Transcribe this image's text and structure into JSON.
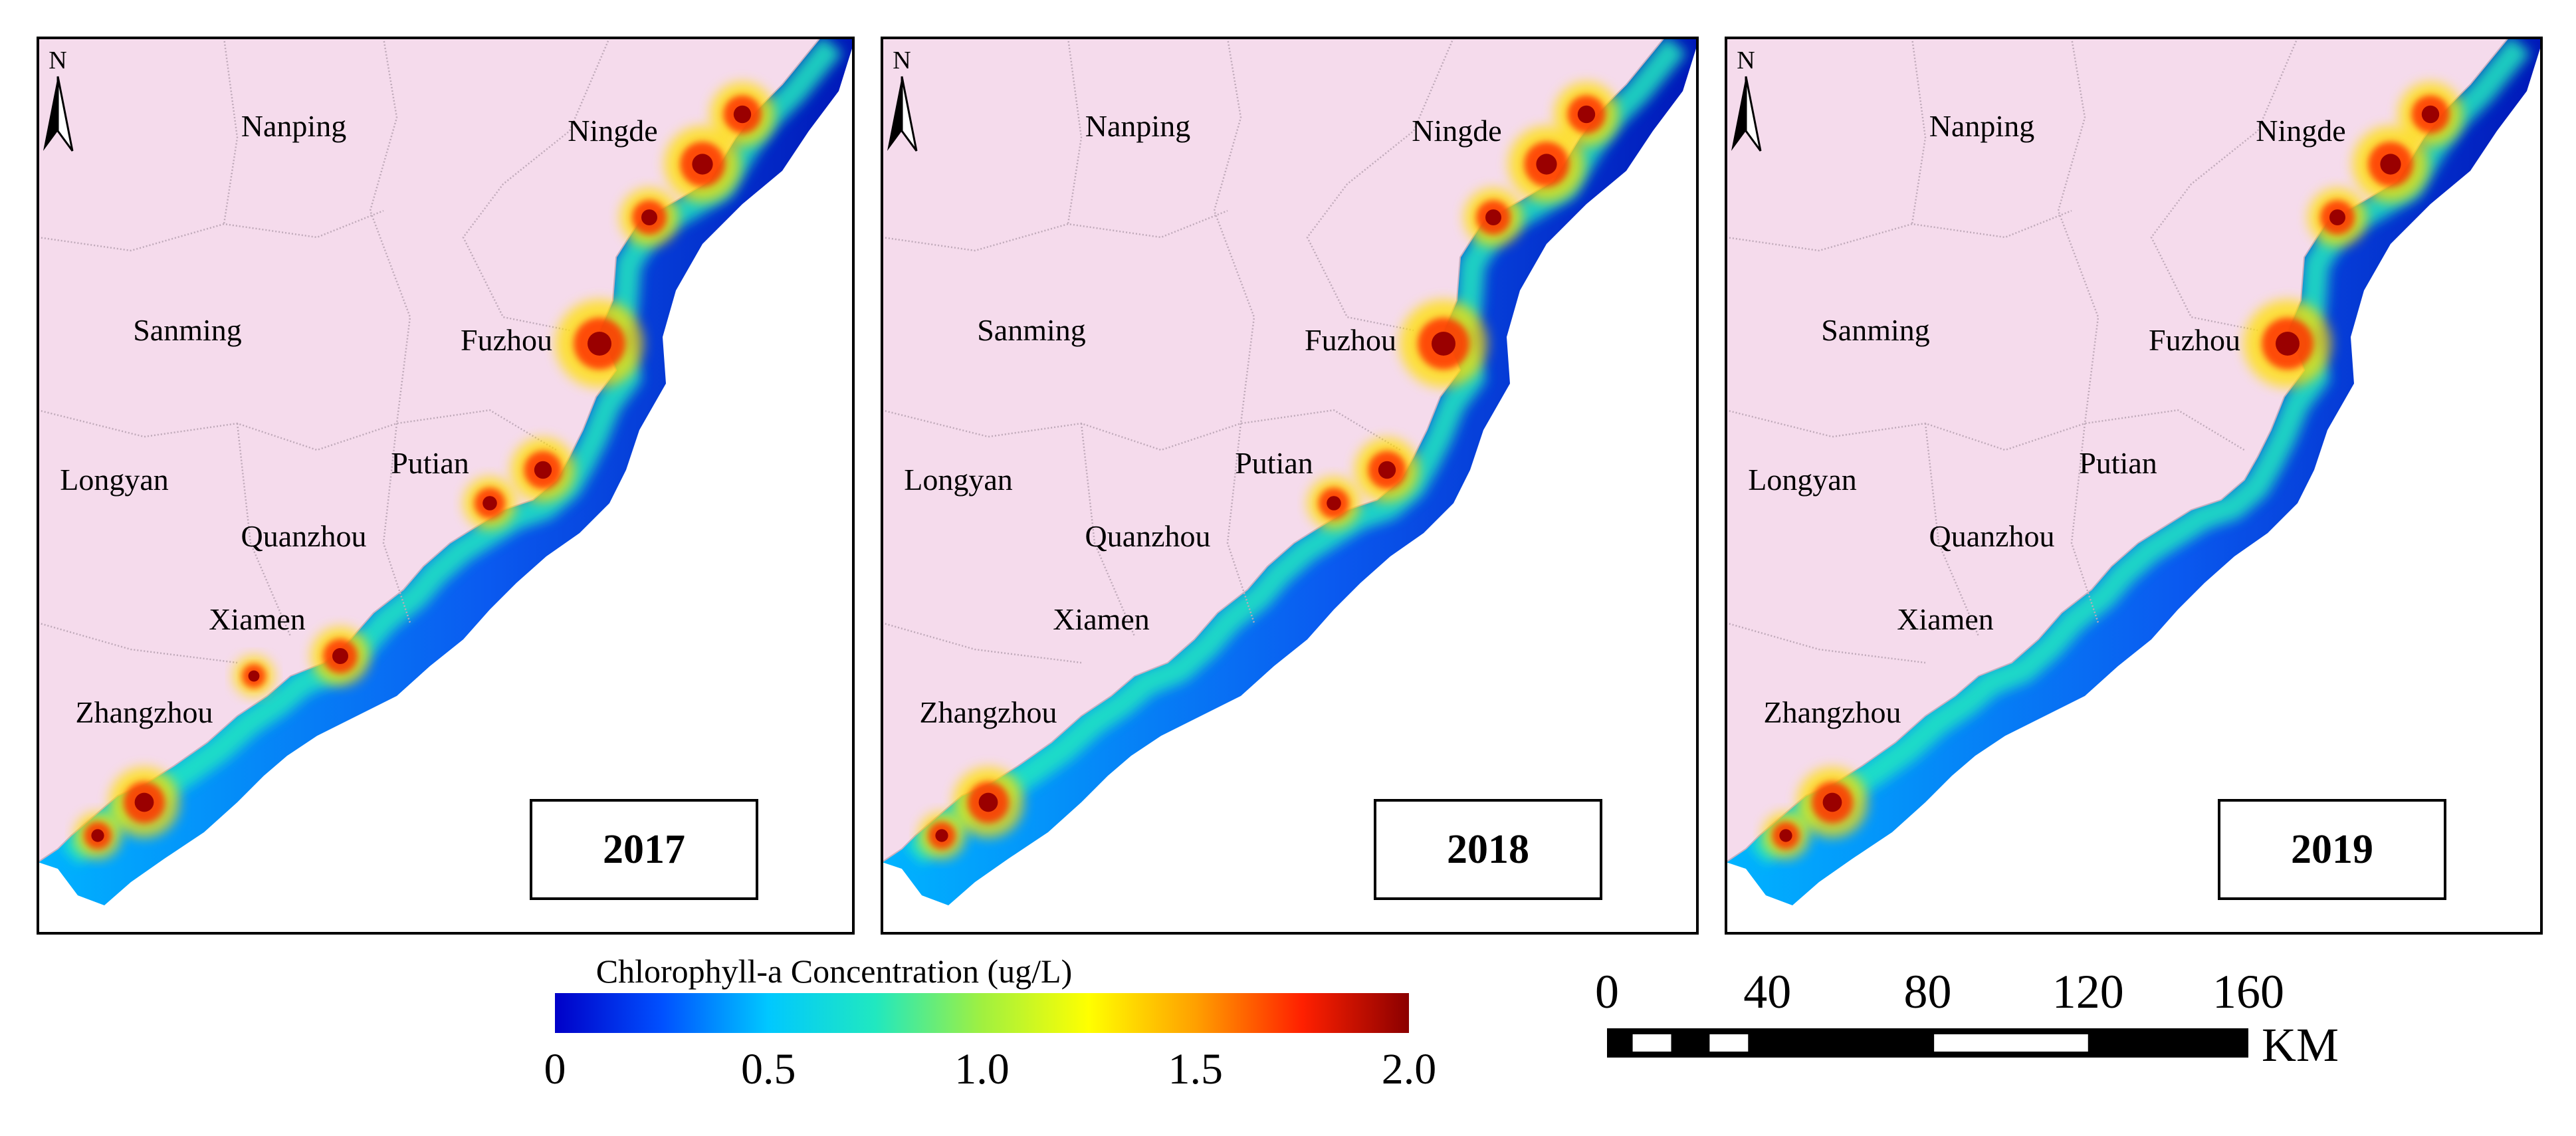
{
  "panels": [
    {
      "year": "2017",
      "north": "N",
      "cities": [
        "Nanping",
        "Ningde",
        "Sanming",
        "Fuzhou",
        "Longyan",
        "Putian",
        "Quanzhou",
        "Xiamen",
        "Zhangzhou"
      ],
      "hotspots": [
        "Ningde",
        "Fuzhou",
        "Putian",
        "Xiamen",
        "Zhangzhou"
      ]
    },
    {
      "year": "2018",
      "north": "N",
      "cities": [
        "Nanping",
        "Ningde",
        "Sanming",
        "Fuzhou",
        "Longyan",
        "Putian",
        "Quanzhou",
        "Xiamen",
        "Zhangzhou"
      ],
      "hotspots": [
        "Ningde",
        "Fuzhou",
        "Putian",
        "Zhangzhou"
      ]
    },
    {
      "year": "2019",
      "north": "N",
      "cities": [
        "Nanping",
        "Ningde",
        "Sanming",
        "Fuzhou",
        "Longyan",
        "Putian",
        "Quanzhou",
        "Xiamen",
        "Zhangzhou"
      ],
      "hotspots": [
        "Ningde",
        "Fuzhou",
        "Zhangzhou"
      ]
    }
  ],
  "legend": {
    "title": "Chlorophyll-a Concentration (ug/L)",
    "ticks": [
      "0",
      "0.5",
      "1.0",
      "1.5",
      "2.0"
    ],
    "min": 0,
    "max": 2.0,
    "colors": [
      "#0000c8",
      "#0050ff",
      "#00c8ff",
      "#20e8c0",
      "#a0f040",
      "#ffff00",
      "#ffa000",
      "#ff2000",
      "#8b0000"
    ]
  },
  "scalebar": {
    "labels": [
      "0",
      "40",
      "80",
      "120",
      "160"
    ],
    "unit": "KM"
  },
  "colors": {
    "land": "#f5dbec",
    "border": "#bfa9b9",
    "frame": "#000000"
  }
}
